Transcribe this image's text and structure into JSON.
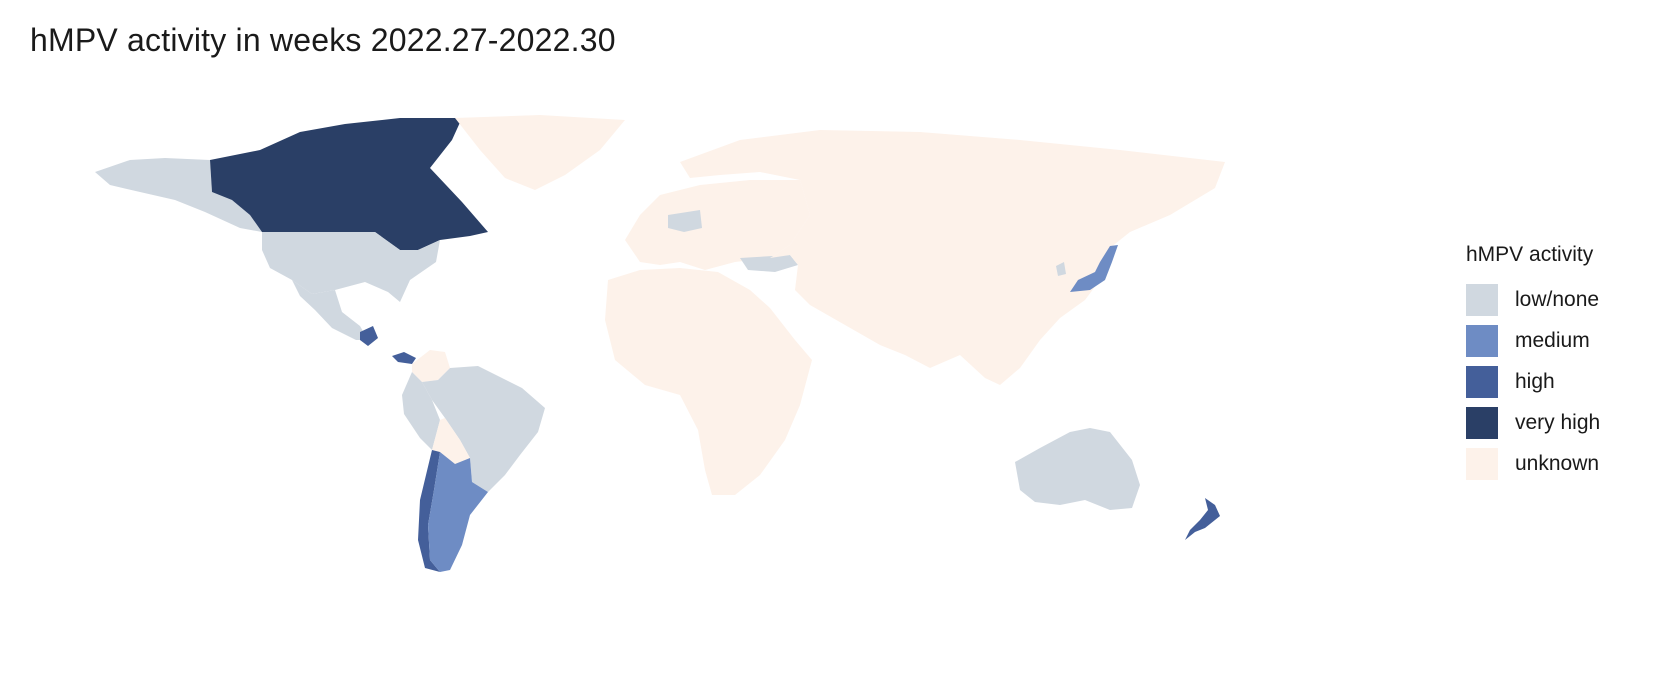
{
  "title": "hMPV activity in weeks 2022.27-2022.30",
  "legend": {
    "title": "hMPV activity",
    "items": [
      {
        "label": "low/none",
        "color": "#d0d8e0"
      },
      {
        "label": "medium",
        "color": "#6e8cc4"
      },
      {
        "label": "high",
        "color": "#445f9a"
      },
      {
        "label": "very high",
        "color": "#2a3f66"
      },
      {
        "label": "unknown",
        "color": "#fdf2ea"
      }
    ]
  },
  "map_data": {
    "type": "choropleth",
    "legend_position": "right",
    "regions": [
      {
        "name": "North America west",
        "level": "low/none"
      },
      {
        "name": "Canada",
        "level": "very high"
      },
      {
        "name": "United States",
        "level": "low/none"
      },
      {
        "name": "Mexico",
        "level": "low/none"
      },
      {
        "name": "Guatemala",
        "level": "high"
      },
      {
        "name": "Panama",
        "level": "high"
      },
      {
        "name": "Colombia",
        "level": "unknown"
      },
      {
        "name": "Brazil",
        "level": "low/none"
      },
      {
        "name": "Peru",
        "level": "low/none"
      },
      {
        "name": "Bolivia",
        "level": "unknown"
      },
      {
        "name": "Chile",
        "level": "high"
      },
      {
        "name": "Argentina",
        "level": "medium"
      },
      {
        "name": "Greenland",
        "level": "unknown"
      },
      {
        "name": "Europe",
        "level": "unknown"
      },
      {
        "name": "Central Europe",
        "level": "low/none"
      },
      {
        "name": "Turkey",
        "level": "low/none"
      },
      {
        "name": "Africa",
        "level": "unknown"
      },
      {
        "name": "Asia",
        "level": "unknown"
      },
      {
        "name": "Japan",
        "level": "medium"
      },
      {
        "name": "Korea",
        "level": "low/none"
      },
      {
        "name": "Australia",
        "level": "low/none"
      },
      {
        "name": "New Zealand",
        "level": "high"
      }
    ]
  }
}
